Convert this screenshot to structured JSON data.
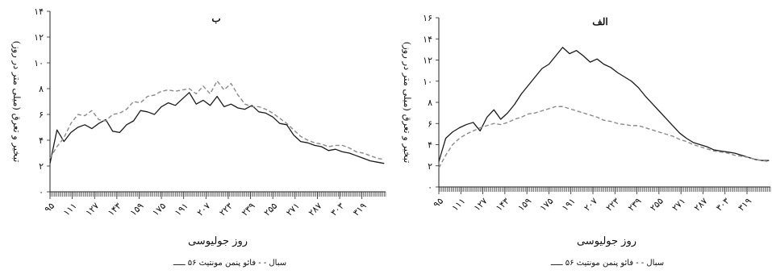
{
  "chart_data": [
    {
      "type": "line",
      "title": "ب",
      "xlabel": "روز جولیوسی",
      "ylabel": "تبخیر و تعرق (میلی متر در روز)",
      "x_tick_labels": [
        "۹۵",
        "۱۱۱",
        "۱۲۷",
        "۱۴۳",
        "۱۵۹",
        "۱۷۵",
        "۱۹۱",
        "۲۰۷",
        "۲۲۳",
        "۲۳۹",
        "۲۵۵",
        "۲۷۱",
        "۲۸۷",
        "۳۰۳",
        "۳۱۹"
      ],
      "x_ticks": [
        95,
        111,
        127,
        143,
        159,
        175,
        191,
        207,
        223,
        239,
        255,
        271,
        287,
        303,
        319
      ],
      "y_tick_labels": [
        "۰",
        "۲",
        "۴",
        "۶",
        "۸",
        "۱۰",
        "۱۲",
        "۱۴"
      ],
      "y_ticks": [
        0,
        2,
        4,
        6,
        8,
        10,
        12,
        14
      ],
      "xlim": [
        95,
        336
      ],
      "ylim": [
        0,
        14
      ],
      "legend_text": "سبال - - فائو پنمن مونتیث ۵۶ ـــــ",
      "grid": false,
      "series": [
        {
          "key": "fao56",
          "style": "solid",
          "color": "#1a1a1a",
          "x": [
            95,
            100,
            105,
            110,
            115,
            120,
            125,
            130,
            135,
            140,
            145,
            150,
            155,
            160,
            165,
            170,
            175,
            180,
            185,
            190,
            195,
            200,
            205,
            210,
            215,
            220,
            225,
            230,
            235,
            240,
            245,
            250,
            255,
            260,
            265,
            270,
            275,
            280,
            285,
            290,
            295,
            300,
            305,
            310,
            315,
            320,
            325,
            330,
            335
          ],
          "values": [
            2.2,
            4.8,
            3.9,
            4.6,
            5.0,
            5.2,
            4.9,
            5.3,
            5.6,
            4.7,
            4.6,
            5.2,
            5.5,
            6.3,
            6.2,
            6.0,
            6.6,
            6.9,
            6.7,
            7.2,
            7.7,
            6.8,
            7.1,
            6.7,
            7.4,
            6.6,
            6.8,
            6.5,
            6.4,
            6.7,
            6.2,
            6.1,
            5.8,
            5.3,
            5.2,
            4.4,
            3.9,
            3.8,
            3.6,
            3.5,
            3.2,
            3.3,
            3.1,
            3.0,
            2.8,
            2.6,
            2.4,
            2.3,
            2.2
          ]
        },
        {
          "key": "sebal",
          "style": "dashed",
          "color": "#8a8a8a",
          "x": [
            95,
            100,
            105,
            110,
            115,
            120,
            125,
            130,
            135,
            140,
            145,
            150,
            155,
            160,
            165,
            170,
            175,
            180,
            185,
            190,
            195,
            200,
            205,
            210,
            215,
            220,
            225,
            230,
            235,
            240,
            245,
            250,
            255,
            260,
            265,
            270,
            275,
            280,
            285,
            290,
            295,
            300,
            305,
            310,
            315,
            320,
            325,
            330,
            335
          ],
          "values": [
            2.6,
            3.5,
            4.2,
            5.3,
            6.0,
            5.9,
            6.3,
            5.6,
            5.5,
            6.0,
            6.1,
            6.4,
            7.0,
            6.9,
            7.4,
            7.5,
            7.8,
            7.9,
            7.8,
            7.9,
            8.0,
            7.6,
            8.2,
            7.6,
            8.6,
            7.9,
            8.4,
            7.5,
            6.8,
            6.6,
            6.6,
            6.4,
            6.1,
            5.7,
            5.3,
            4.8,
            4.3,
            4.0,
            3.8,
            3.7,
            3.5,
            3.6,
            3.6,
            3.4,
            3.1,
            3.0,
            2.8,
            2.6,
            2.5
          ]
        }
      ]
    },
    {
      "type": "line",
      "title": "الف",
      "xlabel": "روز جولیوسی",
      "ylabel": "تبخیر و تعرق (میلی متر در روز)",
      "x_tick_labels": [
        "۹۵",
        "۱۱۱",
        "۱۲۷",
        "۱۴۳",
        "۱۵۹",
        "۱۷۵",
        "۱۹۱",
        "۲۰۷",
        "۲۲۳",
        "۲۳۹",
        "۲۵۵",
        "۲۷۱",
        "۲۸۷",
        "۳۰۳",
        "۳۱۹"
      ],
      "x_ticks": [
        95,
        111,
        127,
        143,
        159,
        175,
        191,
        207,
        223,
        239,
        255,
        271,
        287,
        303,
        319
      ],
      "y_tick_labels": [
        "۰",
        "۲",
        "۴",
        "۶",
        "۸",
        "۱۰",
        "۱۲",
        "۱۴",
        "۱۶"
      ],
      "y_ticks": [
        0,
        2,
        4,
        6,
        8,
        10,
        12,
        14,
        16
      ],
      "xlim": [
        95,
        336
      ],
      "ylim": [
        0,
        16
      ],
      "legend_text": "سبال - - فائو پنمن مونتیث ۵۶ ـــــ",
      "grid": false,
      "series": [
        {
          "key": "fao56",
          "style": "solid",
          "color": "#1a1a1a",
          "x": [
            95,
            100,
            105,
            110,
            115,
            120,
            125,
            130,
            135,
            140,
            145,
            150,
            155,
            160,
            165,
            170,
            175,
            180,
            185,
            190,
            195,
            200,
            205,
            210,
            215,
            220,
            225,
            230,
            235,
            240,
            245,
            250,
            255,
            260,
            265,
            270,
            275,
            280,
            285,
            290,
            295,
            300,
            305,
            310,
            315,
            320,
            325,
            330,
            335
          ],
          "values": [
            2.4,
            4.6,
            5.2,
            5.6,
            5.9,
            6.1,
            5.3,
            6.6,
            7.3,
            6.4,
            7.0,
            7.8,
            8.8,
            9.6,
            10.4,
            11.2,
            11.6,
            12.4,
            13.2,
            12.6,
            12.9,
            12.4,
            11.8,
            12.1,
            11.6,
            11.3,
            10.8,
            10.4,
            10.0,
            9.4,
            8.6,
            7.9,
            7.2,
            6.5,
            5.8,
            5.1,
            4.6,
            4.2,
            4.0,
            3.8,
            3.5,
            3.4,
            3.3,
            3.2,
            3.0,
            2.8,
            2.6,
            2.5,
            2.5
          ]
        },
        {
          "key": "sebal",
          "style": "dashed",
          "color": "#8a8a8a",
          "x": [
            95,
            100,
            105,
            110,
            115,
            120,
            125,
            130,
            135,
            140,
            145,
            150,
            155,
            160,
            165,
            170,
            175,
            180,
            185,
            190,
            195,
            200,
            205,
            210,
            215,
            220,
            225,
            230,
            235,
            240,
            245,
            250,
            255,
            260,
            265,
            270,
            275,
            280,
            285,
            290,
            295,
            300,
            305,
            310,
            315,
            320,
            325,
            330,
            335
          ],
          "values": [
            1.8,
            3.0,
            4.0,
            4.6,
            5.0,
            5.3,
            5.6,
            5.8,
            6.0,
            5.9,
            6.1,
            6.4,
            6.6,
            6.9,
            7.0,
            7.2,
            7.4,
            7.6,
            7.6,
            7.4,
            7.2,
            7.0,
            6.8,
            6.6,
            6.3,
            6.2,
            6.0,
            5.9,
            5.8,
            5.8,
            5.6,
            5.4,
            5.2,
            5.0,
            4.8,
            4.5,
            4.3,
            4.0,
            3.8,
            3.6,
            3.4,
            3.3,
            3.2,
            3.0,
            2.9,
            2.8,
            2.6,
            2.5,
            2.4
          ]
        }
      ]
    }
  ]
}
